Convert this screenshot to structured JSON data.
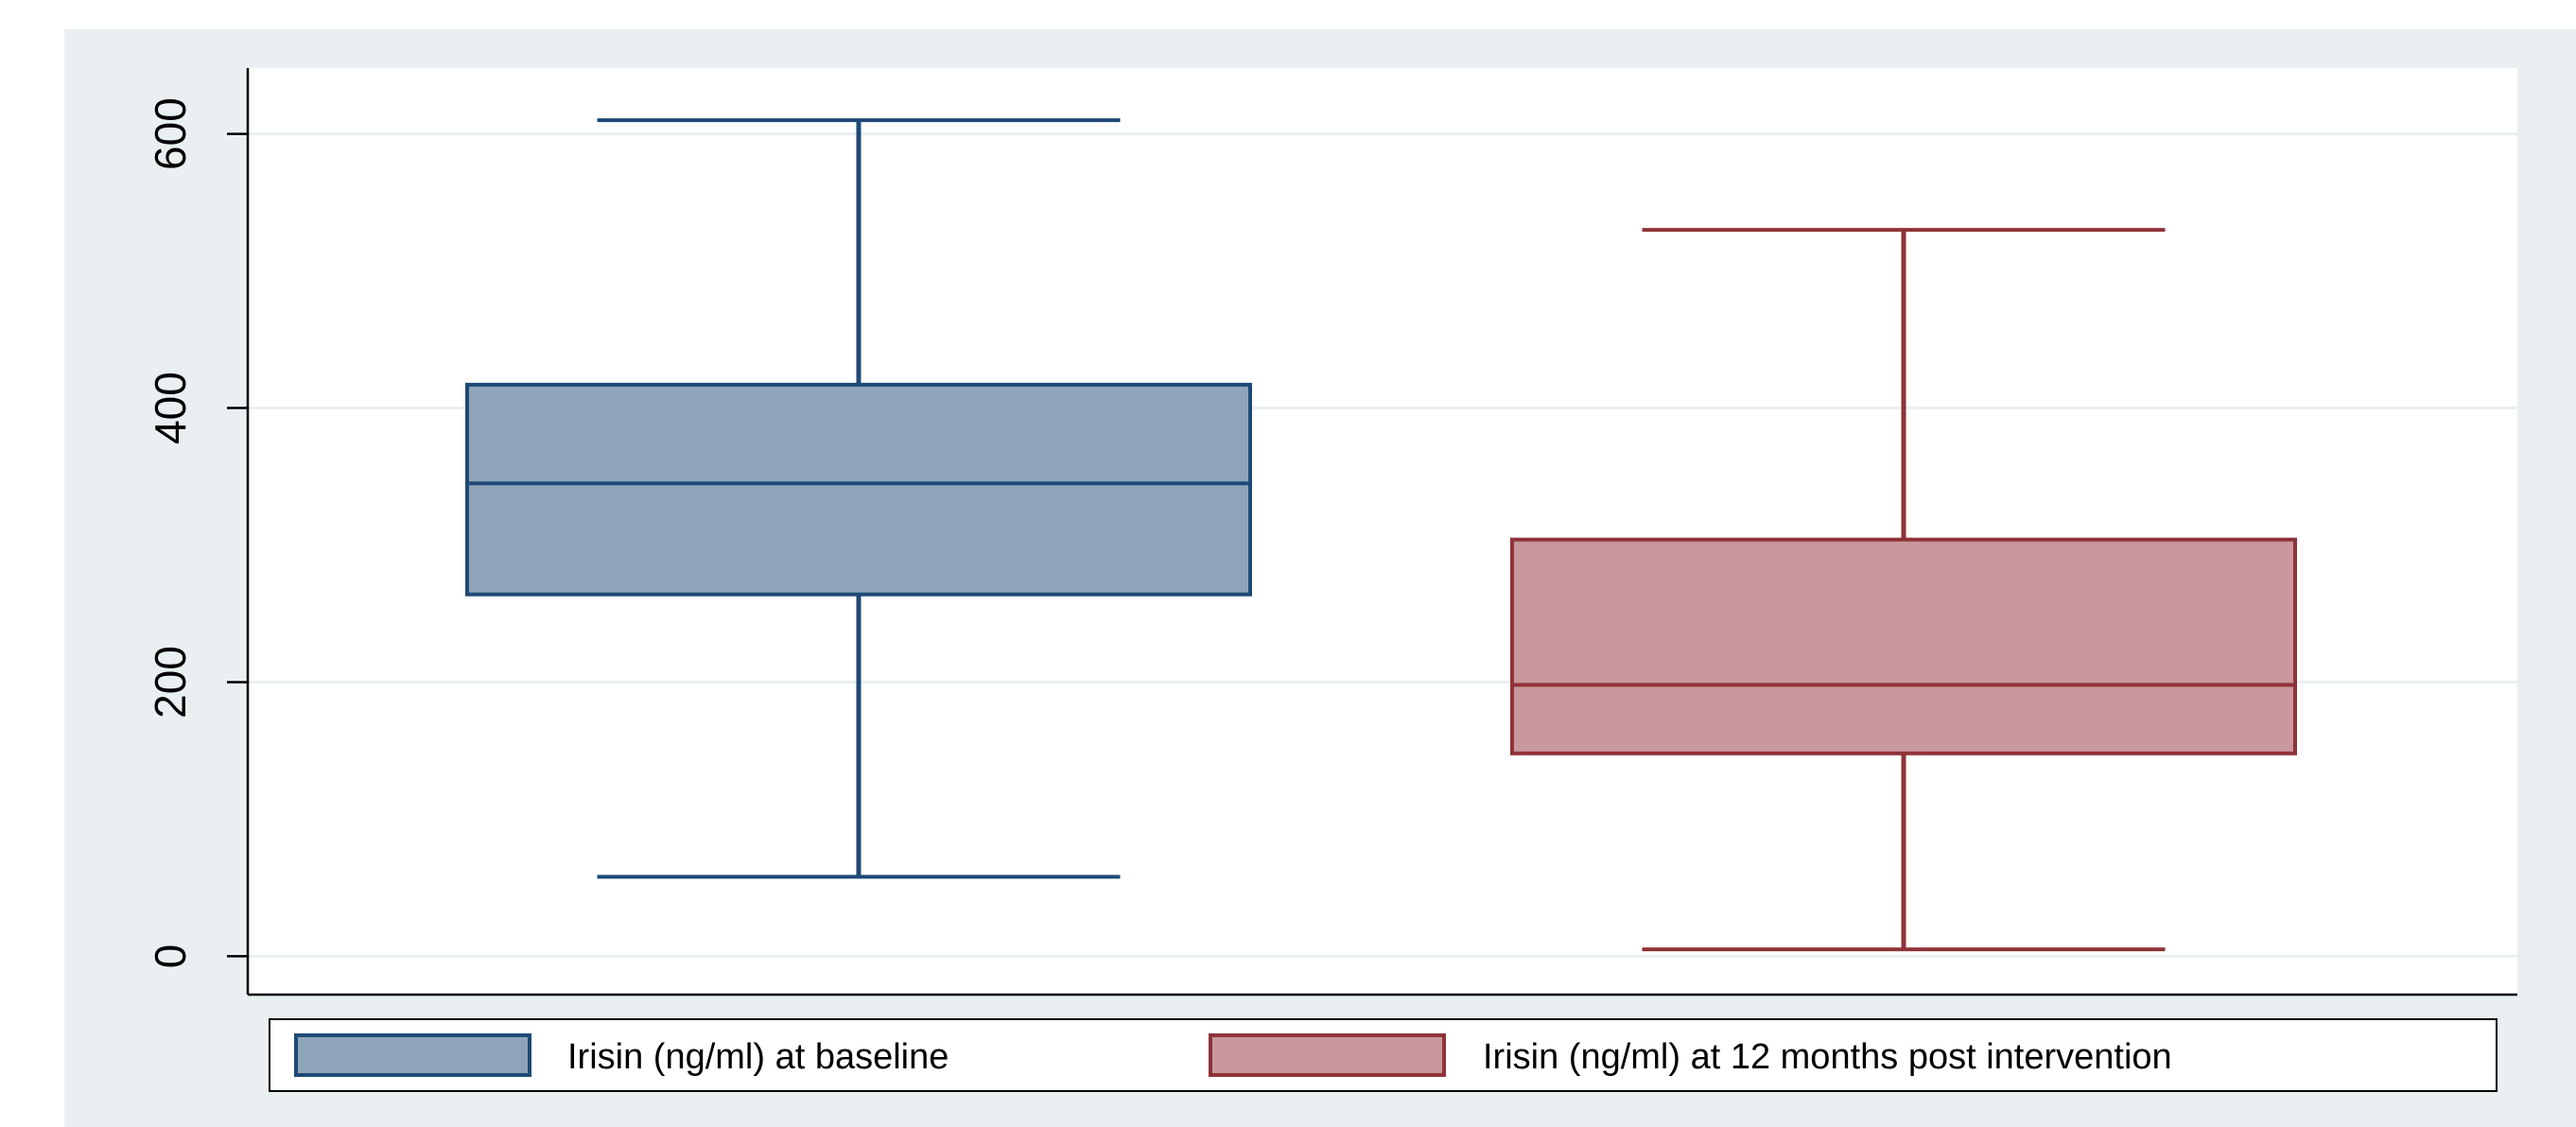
{
  "chart_data": {
    "type": "boxplot",
    "title": "",
    "xlabel": "",
    "ylabel": "",
    "ylim": [
      -28,
      648
    ],
    "yticks": [
      0,
      200,
      400,
      600
    ],
    "grid": true,
    "legend_position": "bottom",
    "series": [
      {
        "name": "Irisin (ng/ml) at baseline",
        "min": 58,
        "q1": 264,
        "median": 345,
        "q3": 417,
        "max": 610,
        "fill": "#8ea5b9",
        "stroke": "#1f4a75"
      },
      {
        "name": "Irisin (ng/ml) at 12 months post intervention",
        "min": 5,
        "q1": 148,
        "median": 198,
        "q3": 304,
        "max": 530,
        "fill": "#c8989c",
        "stroke": "#8f3338"
      }
    ]
  }
}
